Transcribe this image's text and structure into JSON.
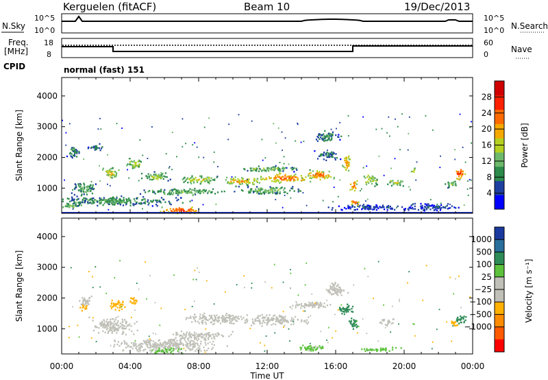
{
  "header": {
    "radar": "Kerguelen (fitACF)",
    "beam": "Beam 10",
    "date": "19/Dec/2013"
  },
  "nsky_panel": {
    "left_label": "N.Sky",
    "right_label": "N.Search",
    "tick_top": "10^5",
    "tick_bottom": "10^0"
  },
  "freq_panel": {
    "left_label_1": "Freq.",
    "left_label_2": "[MHz]",
    "right_label": "Nave",
    "left_ticks": [
      "18",
      "8"
    ],
    "right_ticks": [
      "60",
      "0"
    ]
  },
  "cpid": {
    "label": "CPID",
    "value": "normal (fast) 151"
  },
  "colors": {
    "power_scale": [
      "#0000ff",
      "#1e3fa0",
      "#2c8a4a",
      "#6db86a",
      "#b5d020",
      "#f5a800",
      "#ff6a00",
      "#ff2000",
      "#d00000"
    ],
    "velocity_scale": [
      "#ff0000",
      "#ff5a00",
      "#ff8c00",
      "#ffb000",
      "#c0c0b8",
      "#c0c0b8",
      "#5cc23c",
      "#2e8b57",
      "#2a6e9c",
      "#1a3aa0"
    ],
    "ground_scatter": "#c0c0b8"
  },
  "chart_data": [
    {
      "type": "heatmap",
      "name": "power",
      "ylabel": "Slant Range [km]",
      "yticks": [
        "1000",
        "2000",
        "3000",
        "4000"
      ],
      "ylim": [
        180,
        4600
      ],
      "xlim": [
        0,
        24
      ],
      "colorbar": {
        "label": "Power [dB]",
        "ticks": [
          "4",
          "8",
          "12",
          "16",
          "20",
          "24",
          "28"
        ],
        "range": [
          0,
          32
        ]
      },
      "blobs": [
        {
          "t": 7.0,
          "r": 300,
          "dt": 2.0,
          "dr": 200,
          "v": 27
        },
        {
          "t": 0.5,
          "r": 450,
          "dt": 1.5,
          "dr": 150,
          "v": 14
        },
        {
          "t": 3.0,
          "r": 600,
          "dt": 6.0,
          "dr": 250,
          "v": 11
        },
        {
          "t": 1.3,
          "r": 1000,
          "dt": 1.2,
          "dr": 350,
          "v": 12
        },
        {
          "t": 2.8,
          "r": 1500,
          "dt": 0.9,
          "dr": 300,
          "v": 19
        },
        {
          "t": 4.2,
          "r": 1800,
          "dt": 0.8,
          "dr": 300,
          "v": 17
        },
        {
          "t": 0.6,
          "r": 2200,
          "dt": 0.6,
          "dr": 350,
          "v": 10
        },
        {
          "t": 2.0,
          "r": 2350,
          "dt": 0.8,
          "dr": 200,
          "v": 9
        },
        {
          "t": 5.5,
          "r": 1400,
          "dt": 1.4,
          "dr": 250,
          "v": 15
        },
        {
          "t": 8.0,
          "r": 1300,
          "dt": 2.0,
          "dr": 220,
          "v": 17
        },
        {
          "t": 10.5,
          "r": 1250,
          "dt": 2.0,
          "dr": 220,
          "v": 21
        },
        {
          "t": 13.0,
          "r": 1350,
          "dt": 2.5,
          "dr": 250,
          "v": 25
        },
        {
          "t": 15.0,
          "r": 1450,
          "dt": 1.5,
          "dr": 250,
          "v": 24
        },
        {
          "t": 12.0,
          "r": 1650,
          "dt": 3.0,
          "dr": 150,
          "v": 14
        },
        {
          "t": 7.0,
          "r": 900,
          "dt": 4.0,
          "dr": 180,
          "v": 13
        },
        {
          "t": 12.0,
          "r": 950,
          "dt": 3.0,
          "dr": 200,
          "v": 14
        },
        {
          "t": 15.5,
          "r": 2100,
          "dt": 1.2,
          "dr": 250,
          "v": 8
        },
        {
          "t": 16.6,
          "r": 1800,
          "dt": 0.4,
          "dr": 500,
          "v": 22
        },
        {
          "t": 17.0,
          "r": 1100,
          "dt": 0.4,
          "dr": 300,
          "v": 25
        },
        {
          "t": 17.1,
          "r": 550,
          "dt": 0.5,
          "dr": 150,
          "v": 26
        },
        {
          "t": 18.0,
          "r": 1300,
          "dt": 0.8,
          "dr": 300,
          "v": 18
        },
        {
          "t": 19.5,
          "r": 1200,
          "dt": 0.8,
          "dr": 200,
          "v": 17
        },
        {
          "t": 20.5,
          "r": 1600,
          "dt": 0.3,
          "dr": 150,
          "v": 19
        },
        {
          "t": 23.2,
          "r": 1500,
          "dt": 0.6,
          "dr": 300,
          "v": 28
        },
        {
          "t": 22.7,
          "r": 1150,
          "dt": 0.6,
          "dr": 200,
          "v": 14
        },
        {
          "t": 18.0,
          "r": 400,
          "dt": 4.0,
          "dr": 150,
          "v": 6
        },
        {
          "t": 21.5,
          "r": 400,
          "dt": 2.5,
          "dr": 200,
          "v": 6
        },
        {
          "t": 15.5,
          "r": 2700,
          "dt": 1.2,
          "dr": 300,
          "v": 10
        }
      ]
    },
    {
      "type": "heatmap",
      "name": "velocity",
      "ylabel": "Slant Range [km]",
      "yticks": [
        "1000",
        "2000",
        "3000",
        "4000"
      ],
      "ylim": [
        180,
        4600
      ],
      "xlim": [
        0,
        24
      ],
      "xticks": [
        "00:00",
        "04:00",
        "08:00",
        "12:00",
        "16:00",
        "20:00",
        "00:00"
      ],
      "xlabel": "Time UT",
      "colorbar": {
        "label": "Velocity [m s⁻¹]",
        "ticks": [
          "1000",
          "500",
          "100",
          "25",
          "−25",
          "−100",
          "−500",
          "−1000"
        ]
      },
      "blobs": [
        {
          "t": 6.0,
          "r": 500,
          "dt": 5.0,
          "dr": 350,
          "v": 0
        },
        {
          "t": 9.0,
          "r": 1350,
          "dt": 3.0,
          "dr": 280,
          "v": 0
        },
        {
          "t": 12.5,
          "r": 1300,
          "dt": 3.0,
          "dr": 280,
          "v": 0
        },
        {
          "t": 14.5,
          "r": 1800,
          "dt": 2.0,
          "dr": 200,
          "v": 0
        },
        {
          "t": 3.0,
          "r": 1100,
          "dt": 2.0,
          "dr": 450,
          "v": 0
        },
        {
          "t": 1.3,
          "r": 1900,
          "dt": 0.6,
          "dr": 350,
          "v": 0
        },
        {
          "t": 3.2,
          "r": 1800,
          "dt": 0.8,
          "dr": 300,
          "v": -140
        },
        {
          "t": 4.2,
          "r": 1950,
          "dt": 0.5,
          "dr": 200,
          "v": -180
        },
        {
          "t": 1.3,
          "r": 1700,
          "dt": 0.4,
          "dr": 200,
          "v": -150
        },
        {
          "t": 16.5,
          "r": 1650,
          "dt": 0.8,
          "dr": 300,
          "v": 150
        },
        {
          "t": 17.0,
          "r": 1200,
          "dt": 0.5,
          "dr": 300,
          "v": 130
        },
        {
          "t": 19.0,
          "r": 1250,
          "dt": 0.7,
          "dr": 200,
          "v": 0
        },
        {
          "t": 23.3,
          "r": 1300,
          "dt": 0.6,
          "dr": 250,
          "v": 150
        },
        {
          "t": 22.9,
          "r": 1200,
          "dt": 0.4,
          "dr": 200,
          "v": -150
        },
        {
          "t": 6.0,
          "r": 300,
          "dt": 1.5,
          "dr": 150,
          "v": 60
        },
        {
          "t": 14.5,
          "r": 400,
          "dt": 1.5,
          "dr": 200,
          "v": 60
        },
        {
          "t": 18.5,
          "r": 350,
          "dt": 2.0,
          "dr": 120,
          "v": 60
        },
        {
          "t": 8.0,
          "r": 800,
          "dt": 3.0,
          "dr": 200,
          "v": -40
        },
        {
          "t": 16.0,
          "r": 2300,
          "dt": 1.0,
          "dr": 400,
          "v": -40
        }
      ]
    }
  ]
}
